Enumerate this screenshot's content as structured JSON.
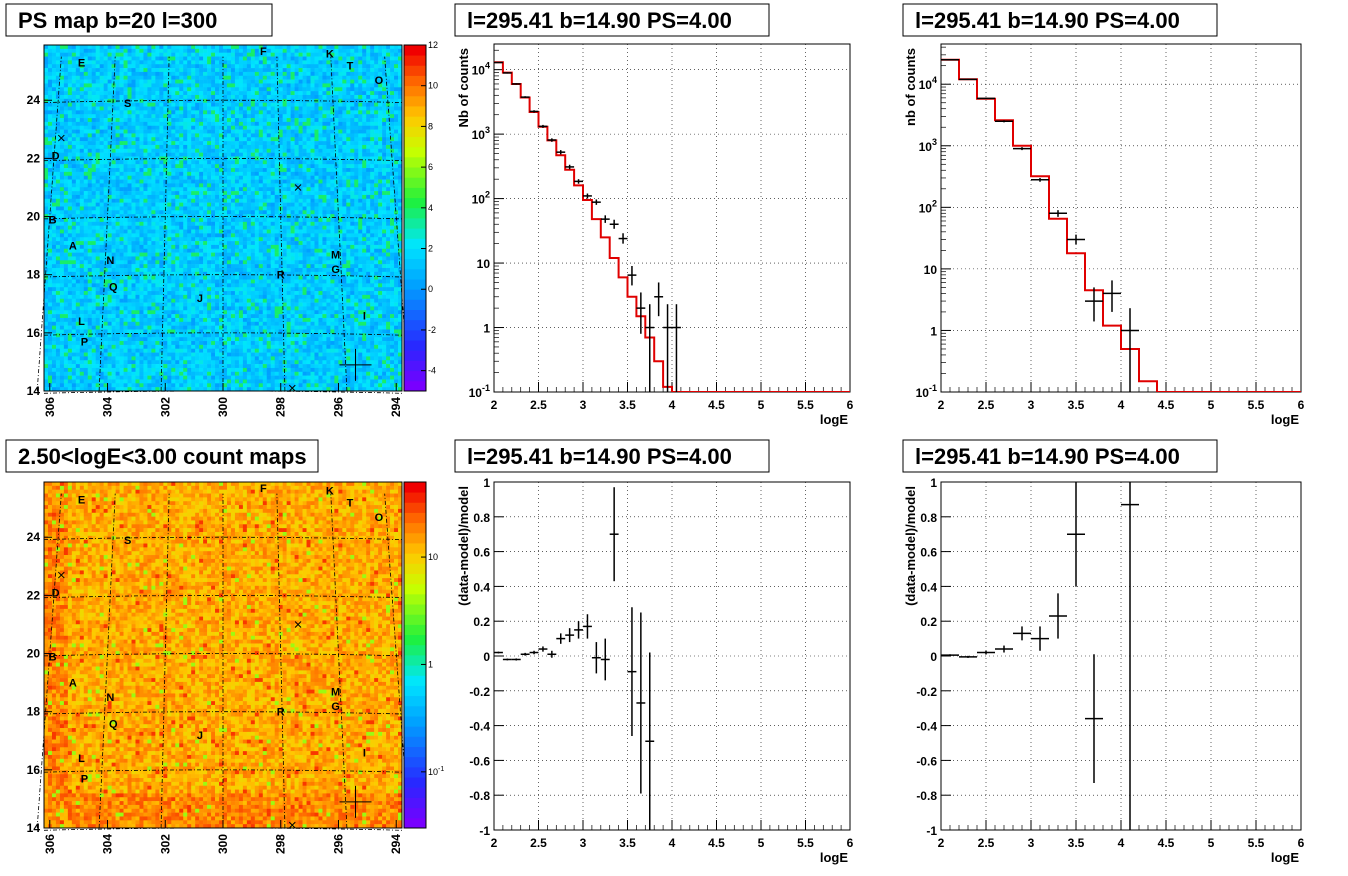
{
  "chart_data": [
    {
      "type": "heatmap",
      "title": "PS map b=20 l=300",
      "x_ticks": [
        "306",
        "304",
        "302",
        "300",
        "298",
        "296",
        "294"
      ],
      "y_ticks": [
        "14",
        "16",
        "18",
        "20",
        "22",
        "24"
      ],
      "xlim": [
        306.2,
        293.8
      ],
      "ylim": [
        14,
        25.9
      ],
      "colorbar": {
        "scale": "linear",
        "range": [
          -5,
          12
        ],
        "ticks": [
          "-4",
          "-2",
          "0",
          "2",
          "4",
          "6",
          "8",
          "10",
          "12"
        ]
      },
      "sources": [
        {
          "label": "E",
          "l": 304.9,
          "b": 25.3
        },
        {
          "label": "F",
          "l": 298.6,
          "b": 25.7
        },
        {
          "label": "K",
          "l": 296.3,
          "b": 25.6
        },
        {
          "label": "T",
          "l": 295.6,
          "b": 25.2
        },
        {
          "label": "O",
          "l": 294.6,
          "b": 24.7
        },
        {
          "label": "S",
          "l": 303.3,
          "b": 23.9
        },
        {
          "label": "D",
          "l": 305.8,
          "b": 22.1
        },
        {
          "label": "B",
          "l": 305.9,
          "b": 19.9
        },
        {
          "label": "A",
          "l": 305.2,
          "b": 19.0
        },
        {
          "label": "N",
          "l": 303.9,
          "b": 18.5
        },
        {
          "label": "M",
          "l": 296.1,
          "b": 18.7
        },
        {
          "label": "G",
          "l": 296.1,
          "b": 18.2
        },
        {
          "label": "R",
          "l": 298.0,
          "b": 18.0
        },
        {
          "label": "Q",
          "l": 303.8,
          "b": 17.6
        },
        {
          "label": "J",
          "l": 300.8,
          "b": 17.2
        },
        {
          "label": "I",
          "l": 295.1,
          "b": 16.6
        },
        {
          "label": "L",
          "l": 304.9,
          "b": 16.4
        },
        {
          "label": "P",
          "l": 304.8,
          "b": 15.7
        }
      ]
    },
    {
      "type": "line",
      "title": "l=295.41 b=14.90 PS=4.00",
      "xlabel": "logE",
      "ylabel": "Nb of counts",
      "xlim": [
        2,
        6
      ],
      "ylim": [
        0.1,
        25000
      ],
      "yscale": "log",
      "grid": true,
      "x_ticks": [
        "2",
        "2.5",
        "3",
        "3.5",
        "4",
        "4.5",
        "5",
        "5.5",
        "6"
      ],
      "y_ticks": [
        {
          "v": 0.1,
          "t": "10",
          "sup": "-1"
        },
        {
          "v": 1,
          "t": "1",
          "sup": ""
        },
        {
          "v": 10,
          "t": "10",
          "sup": ""
        },
        {
          "v": 100,
          "t": "10",
          "sup": "2"
        },
        {
          "v": 1000,
          "t": "10",
          "sup": "3"
        },
        {
          "v": 10000,
          "t": "10",
          "sup": "4"
        }
      ],
      "model": {
        "name": "model",
        "color": "#e00000",
        "bin_width": 0.1,
        "values": [
          13000,
          9000,
          6000,
          3700,
          2200,
          1300,
          800,
          470,
          280,
          160,
          95,
          48,
          25,
          12,
          6,
          3,
          1.5,
          0.7,
          0.3,
          0.12,
          0.1,
          0.1,
          0.1,
          0.1,
          0.1,
          0.1,
          0.1,
          0.1,
          0.1,
          0.1,
          0.1,
          0.1,
          0.1,
          0.1,
          0.1,
          0.1,
          0.1,
          0.1,
          0.1,
          0.1
        ]
      },
      "data": {
        "name": "data",
        "color": "#000000",
        "points": [
          {
            "x": 2.05,
            "y": 12900,
            "lo": 12700,
            "hi": 13100
          },
          {
            "x": 2.15,
            "y": 8900,
            "lo": 8700,
            "hi": 9100
          },
          {
            "x": 2.25,
            "y": 6000,
            "lo": 5850,
            "hi": 6150
          },
          {
            "x": 2.35,
            "y": 3750,
            "lo": 3630,
            "hi": 3870
          },
          {
            "x": 2.45,
            "y": 2250,
            "lo": 2150,
            "hi": 2350
          },
          {
            "x": 2.55,
            "y": 1320,
            "lo": 1250,
            "hi": 1390
          },
          {
            "x": 2.65,
            "y": 810,
            "lo": 760,
            "hi": 860
          },
          {
            "x": 2.75,
            "y": 525,
            "lo": 485,
            "hi": 565
          },
          {
            "x": 2.85,
            "y": 310,
            "lo": 285,
            "hi": 335
          },
          {
            "x": 2.95,
            "y": 185,
            "lo": 170,
            "hi": 200
          },
          {
            "x": 3.05,
            "y": 110,
            "lo": 100,
            "hi": 120
          },
          {
            "x": 3.15,
            "y": 88,
            "lo": 80,
            "hi": 97
          },
          {
            "x": 3.25,
            "y": 48,
            "lo": 42,
            "hi": 55
          },
          {
            "x": 3.35,
            "y": 40,
            "lo": 34,
            "hi": 47
          },
          {
            "x": 3.45,
            "y": 24,
            "lo": 20,
            "hi": 29
          },
          {
            "x": 3.55,
            "y": 6.5,
            "lo": 4.5,
            "hi": 9
          },
          {
            "x": 3.65,
            "y": 2,
            "lo": 0.8,
            "hi": 3.5
          },
          {
            "x": 3.75,
            "y": 1,
            "lo": 0.1,
            "hi": 2.3
          },
          {
            "x": 3.85,
            "y": 3,
            "lo": 1.5,
            "hi": 5
          },
          {
            "x": 3.95,
            "y": 1,
            "lo": 0.1,
            "hi": 2.3
          },
          {
            "x": 4.05,
            "y": 1,
            "lo": 0.1,
            "hi": 2.3
          }
        ]
      }
    },
    {
      "type": "line",
      "title": "l=295.41 b=14.90 PS=4.00",
      "xlabel": "logE",
      "ylabel": "nb of counts",
      "xlim": [
        2,
        6
      ],
      "ylim": [
        0.1,
        45000
      ],
      "yscale": "log",
      "grid": true,
      "x_ticks": [
        "2",
        "2.5",
        "3",
        "3.5",
        "4",
        "4.5",
        "5",
        "5.5",
        "6"
      ],
      "y_ticks": [
        {
          "v": 0.1,
          "t": "10",
          "sup": "-1"
        },
        {
          "v": 1,
          "t": "1",
          "sup": ""
        },
        {
          "v": 10,
          "t": "10",
          "sup": ""
        },
        {
          "v": 100,
          "t": "10",
          "sup": "2"
        },
        {
          "v": 1000,
          "t": "10",
          "sup": "3"
        },
        {
          "v": 10000,
          "t": "10",
          "sup": "4"
        }
      ],
      "model": {
        "name": "model",
        "color": "#e00000",
        "bin_width": 0.2,
        "values": [
          25000,
          12000,
          5800,
          2600,
          1000,
          320,
          65,
          18,
          4.5,
          1.2,
          0.5,
          0.15,
          0.1,
          0.1,
          0.1,
          0.1,
          0.1,
          0.1,
          0.1,
          0.1
        ]
      },
      "data": {
        "name": "data",
        "color": "#000000",
        "points": [
          {
            "x": 2.1,
            "y": 25000,
            "lo": 24700,
            "hi": 25300
          },
          {
            "x": 2.3,
            "y": 12000,
            "lo": 11800,
            "hi": 12200
          },
          {
            "x": 2.5,
            "y": 5900,
            "lo": 5750,
            "hi": 6050
          },
          {
            "x": 2.7,
            "y": 2500,
            "lo": 2400,
            "hi": 2600
          },
          {
            "x": 2.9,
            "y": 900,
            "lo": 850,
            "hi": 950
          },
          {
            "x": 3.1,
            "y": 280,
            "lo": 260,
            "hi": 300
          },
          {
            "x": 3.3,
            "y": 80,
            "lo": 70,
            "hi": 90
          },
          {
            "x": 3.5,
            "y": 30,
            "lo": 25,
            "hi": 36
          },
          {
            "x": 3.7,
            "y": 3,
            "lo": 1.4,
            "hi": 5
          },
          {
            "x": 3.9,
            "y": 4,
            "lo": 2,
            "hi": 6.5
          },
          {
            "x": 4.1,
            "y": 1,
            "lo": 0.1,
            "hi": 2.3
          }
        ]
      }
    },
    {
      "type": "heatmap",
      "title": "2.50<logE<3.00 count maps",
      "x_ticks": [
        "306",
        "304",
        "302",
        "300",
        "298",
        "296",
        "294"
      ],
      "y_ticks": [
        "14",
        "16",
        "18",
        "20",
        "22",
        "24"
      ],
      "xlim": [
        306.2,
        293.8
      ],
      "ylim": [
        14,
        25.9
      ],
      "colorbar": {
        "scale": "log",
        "range": [
          0.03,
          50
        ],
        "ticks": [
          {
            "v": 0.1,
            "t": "10",
            "sup": "-1"
          },
          {
            "v": 1,
            "t": "1",
            "sup": ""
          },
          {
            "v": 10,
            "t": "10",
            "sup": ""
          }
        ]
      },
      "sources": [
        {
          "label": "E",
          "l": 304.9,
          "b": 25.3
        },
        {
          "label": "F",
          "l": 298.6,
          "b": 25.7
        },
        {
          "label": "K",
          "l": 296.3,
          "b": 25.6
        },
        {
          "label": "T",
          "l": 295.6,
          "b": 25.2
        },
        {
          "label": "O",
          "l": 294.6,
          "b": 24.7
        },
        {
          "label": "S",
          "l": 303.3,
          "b": 23.9
        },
        {
          "label": "D",
          "l": 305.8,
          "b": 22.1
        },
        {
          "label": "B",
          "l": 305.9,
          "b": 19.9
        },
        {
          "label": "A",
          "l": 305.2,
          "b": 19.0
        },
        {
          "label": "N",
          "l": 303.9,
          "b": 18.5
        },
        {
          "label": "M",
          "l": 296.1,
          "b": 18.7
        },
        {
          "label": "G",
          "l": 296.1,
          "b": 18.2
        },
        {
          "label": "R",
          "l": 298.0,
          "b": 18.0
        },
        {
          "label": "Q",
          "l": 303.8,
          "b": 17.6
        },
        {
          "label": "J",
          "l": 300.8,
          "b": 17.2
        },
        {
          "label": "I",
          "l": 295.1,
          "b": 16.6
        },
        {
          "label": "L",
          "l": 304.9,
          "b": 16.4
        },
        {
          "label": "P",
          "l": 304.8,
          "b": 15.7
        }
      ]
    },
    {
      "type": "scatter",
      "title": "l=295.41 b=14.90 PS=4.00",
      "xlabel": "logE",
      "ylabel": "(data-model)/model",
      "xlim": [
        2,
        6
      ],
      "ylim": [
        -1,
        1
      ],
      "grid": true,
      "x_ticks": [
        "2",
        "2.5",
        "3",
        "3.5",
        "4",
        "4.5",
        "5",
        "5.5",
        "6"
      ],
      "y_ticks": [
        "-1",
        "-0.8",
        "-0.6",
        "-0.4",
        "-0.2",
        "0",
        "0.2",
        "0.4",
        "0.6",
        "0.8",
        "1"
      ],
      "series": [
        {
          "name": "residuals",
          "x_half_width": 0.05,
          "points": [
            {
              "x": 2.05,
              "y": 0.02,
              "err": 0.005
            },
            {
              "x": 2.15,
              "y": -0.02,
              "err": 0.005
            },
            {
              "x": 2.25,
              "y": -0.02,
              "err": 0.006
            },
            {
              "x": 2.35,
              "y": 0.01,
              "err": 0.008
            },
            {
              "x": 2.45,
              "y": 0.02,
              "err": 0.01
            },
            {
              "x": 2.55,
              "y": 0.04,
              "err": 0.015
            },
            {
              "x": 2.65,
              "y": 0.01,
              "err": 0.02
            },
            {
              "x": 2.75,
              "y": 0.1,
              "err": 0.03
            },
            {
              "x": 2.85,
              "y": 0.12,
              "err": 0.04
            },
            {
              "x": 2.95,
              "y": 0.15,
              "err": 0.05
            },
            {
              "x": 3.05,
              "y": 0.17,
              "err": 0.07
            },
            {
              "x": 3.15,
              "y": -0.01,
              "err": 0.09
            },
            {
              "x": 3.25,
              "y": -0.02,
              "err": 0.12
            },
            {
              "x": 3.35,
              "y": 0.7,
              "err": 0.27
            },
            {
              "x": 3.55,
              "y": -0.09,
              "err": 0.37
            },
            {
              "x": 3.65,
              "y": -0.27,
              "err": 0.52
            },
            {
              "x": 3.75,
              "y": -0.49,
              "err": 0.51
            }
          ]
        }
      ]
    },
    {
      "type": "scatter",
      "title": "l=295.41 b=14.90 PS=4.00",
      "xlabel": "logE",
      "ylabel": "(data-model)/model",
      "xlim": [
        2,
        6
      ],
      "ylim": [
        -1,
        1
      ],
      "grid": true,
      "x_ticks": [
        "2",
        "2.5",
        "3",
        "3.5",
        "4",
        "4.5",
        "5",
        "5.5",
        "6"
      ],
      "y_ticks": [
        "-1",
        "-0.8",
        "-0.6",
        "-0.4",
        "-0.2",
        "0",
        "0.2",
        "0.4",
        "0.6",
        "0.8",
        "1"
      ],
      "series": [
        {
          "name": "residuals",
          "x_half_width": 0.1,
          "points": [
            {
              "x": 2.1,
              "y": 0.005,
              "err": 0.005
            },
            {
              "x": 2.3,
              "y": -0.005,
              "err": 0.006
            },
            {
              "x": 2.5,
              "y": 0.02,
              "err": 0.01
            },
            {
              "x": 2.7,
              "y": 0.04,
              "err": 0.02
            },
            {
              "x": 2.9,
              "y": 0.13,
              "err": 0.04
            },
            {
              "x": 3.1,
              "y": 0.1,
              "err": 0.07
            },
            {
              "x": 3.3,
              "y": 0.23,
              "err": 0.13
            },
            {
              "x": 3.5,
              "y": 0.7,
              "err": 0.3
            },
            {
              "x": 3.7,
              "y": -0.36,
              "err": 0.37
            },
            {
              "x": 4.1,
              "y": 0.87,
              "err": 1.9
            }
          ]
        }
      ]
    }
  ]
}
